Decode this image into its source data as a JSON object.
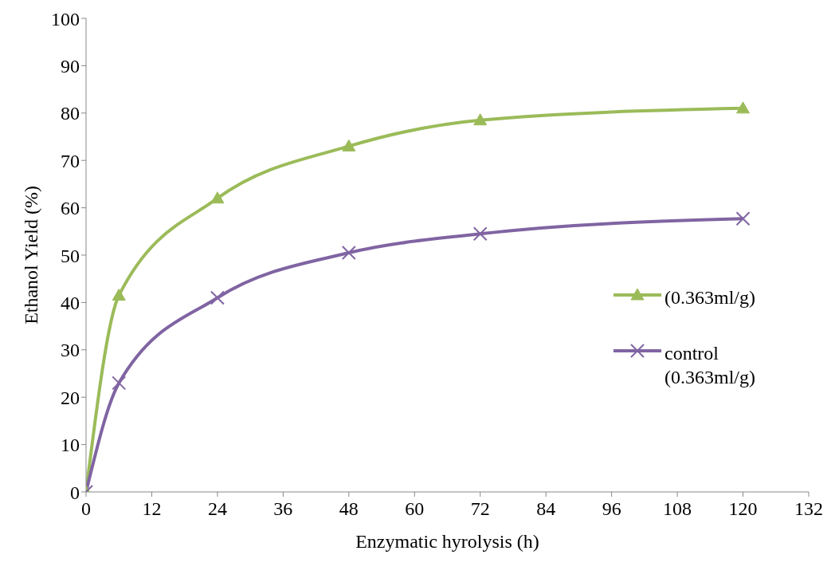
{
  "chart_data": {
    "type": "line",
    "xlabel": "Enzymatic hyrolysis (h)",
    "ylabel": "Ethanol Yield (%)",
    "xlim": [
      0,
      132
    ],
    "xticks": [
      0,
      12,
      24,
      36,
      48,
      60,
      72,
      84,
      96,
      108,
      120,
      132
    ],
    "ylim": [
      0,
      100
    ],
    "yticks": [
      0,
      10,
      20,
      30,
      40,
      50,
      60,
      70,
      80,
      90,
      100
    ],
    "grid": false,
    "legend": "right",
    "line_style": "solid",
    "x": [
      0,
      6,
      24,
      48,
      72,
      120
    ],
    "series": [
      {
        "name": "(0.363ml/g)",
        "color": "#9bbb59",
        "marker": "triangle",
        "values": [
          0,
          41.5,
          62,
          73,
          78.5,
          81
        ]
      },
      {
        "name": "control (0.363ml/g)",
        "color": "#8064a2",
        "marker": "cross",
        "values": [
          0,
          23,
          41,
          50.5,
          54.5,
          57.7
        ]
      }
    ]
  }
}
